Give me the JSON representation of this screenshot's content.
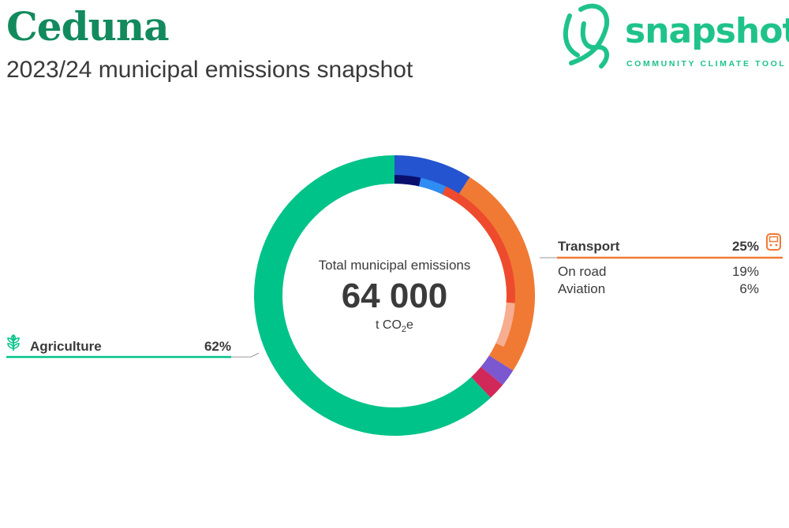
{
  "header": {
    "title": "Ceduna",
    "subtitle": "2023/24 municipal emissions snapshot"
  },
  "logo": {
    "wordmark": "snapshot",
    "tagline": "COMMUNITY CLIMATE TOOL",
    "color": "#1fc38a"
  },
  "chart_data": {
    "type": "pie",
    "variant": "donut",
    "center": {
      "label": "Total municipal emissions",
      "total": "64 000",
      "unit_prefix": "t CO",
      "unit_sub": "2",
      "unit_suffix": "e",
      "total_value": 64000
    },
    "outer_ring": [
      {
        "id": "electricity",
        "share": 0.09,
        "color": "#2454cf"
      },
      {
        "id": "transport",
        "share": 0.25,
        "color": "#f07a34"
      },
      {
        "id": "waste-a",
        "share": 0.02,
        "color": "#7b57d0"
      },
      {
        "id": "waste-b",
        "share": 0.02,
        "color": "#d1285a"
      },
      {
        "id": "agriculture",
        "share": 0.62,
        "color": "#00c389"
      }
    ],
    "inner_ring": [
      {
        "id": "electricity-a",
        "share": 0.035,
        "color": "#0a0f6e"
      },
      {
        "id": "electricity-b",
        "share": 0.035,
        "color": "#2e8cf2"
      },
      {
        "id": "on-road",
        "share": 0.19,
        "color": "#ee4b2e"
      },
      {
        "id": "aviation",
        "share": 0.06,
        "color": "#f7ad90"
      }
    ],
    "legend": {
      "transport": {
        "label": "Transport",
        "value": "25%",
        "color": "#f07a34",
        "icon": "train-icon",
        "children": [
          {
            "label": "On road",
            "value": "19%"
          },
          {
            "label": "Aviation",
            "value": "6%"
          }
        ]
      },
      "agriculture": {
        "label": "Agriculture",
        "value": "62%",
        "color": "#00c389",
        "icon": "leaf-sprout-icon"
      }
    }
  }
}
